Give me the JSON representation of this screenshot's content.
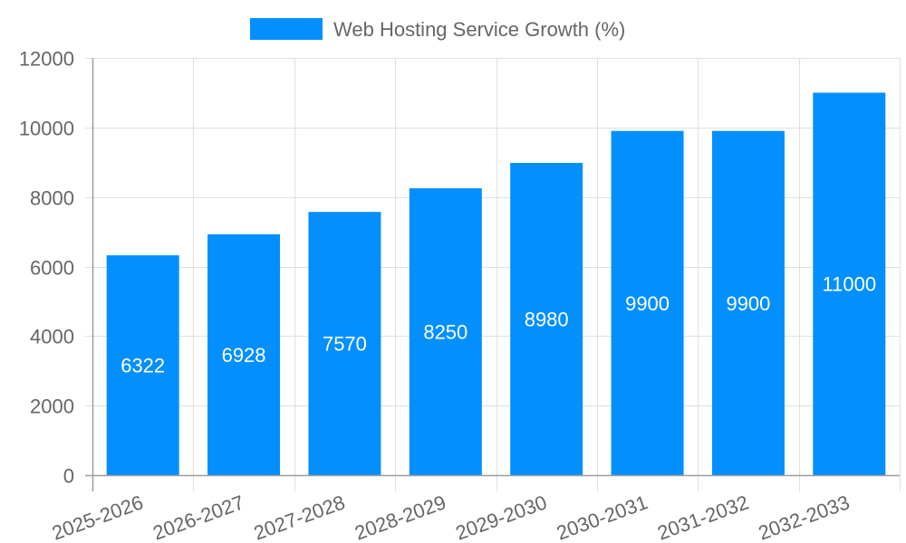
{
  "chart_data": {
    "type": "bar",
    "title": "",
    "legend": [
      {
        "label": "Web Hosting Service Growth (%)",
        "color": "#038ffe"
      }
    ],
    "legend_position": "top",
    "categories": [
      "2025-2026",
      "2026-2027",
      "2027-2028",
      "2028-2029",
      "2029-2030",
      "2030-2031",
      "2031-2032",
      "2032-2033"
    ],
    "series": [
      {
        "name": "Web Hosting Service Growth (%)",
        "values": [
          6322,
          6928,
          7570,
          8250,
          8980,
          9900,
          9900,
          11000
        ],
        "color": "#038ffe"
      }
    ],
    "xlabel": "",
    "ylabel": "",
    "ylim": [
      0,
      12000
    ],
    "yticks": [
      0,
      2000,
      4000,
      6000,
      8000,
      10000,
      12000
    ],
    "grid": true,
    "data_labels": true
  }
}
